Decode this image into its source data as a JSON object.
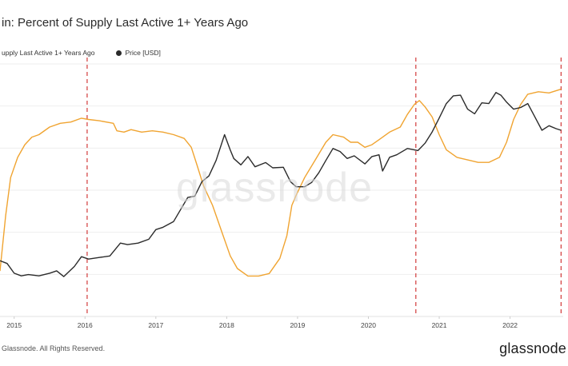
{
  "header": {
    "title": "in: Percent of Supply Last Active 1+ Years Ago"
  },
  "legend": {
    "items": [
      {
        "label": "upply Last Active 1+ Years Ago",
        "color": "#f0a431"
      },
      {
        "label": "Price [USD]",
        "color": "#2b2b2b"
      }
    ]
  },
  "watermark": "glassnode",
  "footer": {
    "copyright": "Glassnode. All Rights Reserved.",
    "logo": "glassnode"
  },
  "chart_data": {
    "type": "line",
    "xlim": [
      2014.8,
      2022.75
    ],
    "x_ticks": [
      {
        "x": 2015,
        "label": "2015"
      },
      {
        "x": 2016,
        "label": "2016"
      },
      {
        "x": 2017,
        "label": "2017"
      },
      {
        "x": 2018,
        "label": "2018"
      },
      {
        "x": 2019,
        "label": "2019"
      },
      {
        "x": 2020,
        "label": "2020"
      },
      {
        "x": 2021,
        "label": "2021"
      },
      {
        "x": 2022,
        "label": "2022"
      }
    ],
    "halvings": [
      2016.03,
      2020.67,
      2022.72
    ],
    "grid": "horizontal",
    "series": [
      {
        "key": "supply",
        "color": "#f0a431",
        "scale": "linear",
        "ylim": [
          0,
          100
        ],
        "points": [
          [
            2014.8,
            18
          ],
          [
            2014.88,
            40
          ],
          [
            2014.95,
            55
          ],
          [
            2015.05,
            63
          ],
          [
            2015.15,
            68
          ],
          [
            2015.25,
            71
          ],
          [
            2015.35,
            72
          ],
          [
            2015.5,
            75
          ],
          [
            2015.65,
            76.5
          ],
          [
            2015.8,
            77
          ],
          [
            2015.95,
            78.5
          ],
          [
            2016.05,
            78
          ],
          [
            2016.2,
            77.5
          ],
          [
            2016.4,
            76.5
          ],
          [
            2016.45,
            73.5
          ],
          [
            2016.55,
            73
          ],
          [
            2016.65,
            74
          ],
          [
            2016.8,
            73
          ],
          [
            2016.95,
            73.5
          ],
          [
            2017.1,
            73
          ],
          [
            2017.25,
            72
          ],
          [
            2017.4,
            70.5
          ],
          [
            2017.5,
            67
          ],
          [
            2017.58,
            60
          ],
          [
            2017.67,
            52
          ],
          [
            2017.8,
            44
          ],
          [
            2017.95,
            32
          ],
          [
            2018.05,
            24
          ],
          [
            2018.15,
            19
          ],
          [
            2018.3,
            16
          ],
          [
            2018.45,
            16
          ],
          [
            2018.6,
            17
          ],
          [
            2018.75,
            23
          ],
          [
            2018.85,
            32
          ],
          [
            2018.92,
            44
          ],
          [
            2018.98,
            48
          ],
          [
            2019.1,
            55
          ],
          [
            2019.25,
            62
          ],
          [
            2019.4,
            69
          ],
          [
            2019.5,
            72
          ],
          [
            2019.65,
            71
          ],
          [
            2019.75,
            69
          ],
          [
            2019.85,
            69
          ],
          [
            2019.95,
            67
          ],
          [
            2020.05,
            68
          ],
          [
            2020.15,
            70
          ],
          [
            2020.3,
            73
          ],
          [
            2020.45,
            75
          ],
          [
            2020.55,
            80
          ],
          [
            2020.65,
            84
          ],
          [
            2020.72,
            85.5
          ],
          [
            2020.8,
            83
          ],
          [
            2020.9,
            79
          ],
          [
            2021.0,
            72
          ],
          [
            2021.1,
            66
          ],
          [
            2021.25,
            63
          ],
          [
            2021.4,
            62
          ],
          [
            2021.55,
            61
          ],
          [
            2021.7,
            61
          ],
          [
            2021.85,
            63
          ],
          [
            2021.95,
            69
          ],
          [
            2022.05,
            78
          ],
          [
            2022.15,
            84
          ],
          [
            2022.25,
            88
          ],
          [
            2022.4,
            89
          ],
          [
            2022.55,
            88.5
          ],
          [
            2022.72,
            90
          ]
        ]
      },
      {
        "key": "price",
        "color": "#2b2b2b",
        "scale": "log",
        "ylim": [
          70,
          150000
        ],
        "points": [
          [
            2014.8,
            380
          ],
          [
            2014.9,
            350
          ],
          [
            2015.0,
            260
          ],
          [
            2015.1,
            240
          ],
          [
            2015.2,
            250
          ],
          [
            2015.35,
            240
          ],
          [
            2015.5,
            260
          ],
          [
            2015.6,
            280
          ],
          [
            2015.7,
            235
          ],
          [
            2015.85,
            320
          ],
          [
            2015.95,
            430
          ],
          [
            2016.05,
            400
          ],
          [
            2016.2,
            420
          ],
          [
            2016.35,
            440
          ],
          [
            2016.5,
            650
          ],
          [
            2016.6,
            620
          ],
          [
            2016.75,
            650
          ],
          [
            2016.9,
            730
          ],
          [
            2017.0,
            980
          ],
          [
            2017.1,
            1050
          ],
          [
            2017.25,
            1250
          ],
          [
            2017.35,
            1800
          ],
          [
            2017.45,
            2600
          ],
          [
            2017.55,
            2700
          ],
          [
            2017.65,
            4200
          ],
          [
            2017.75,
            5000
          ],
          [
            2017.85,
            8000
          ],
          [
            2017.97,
            17500
          ],
          [
            2018.05,
            11000
          ],
          [
            2018.1,
            8500
          ],
          [
            2018.2,
            7000
          ],
          [
            2018.3,
            9000
          ],
          [
            2018.4,
            6600
          ],
          [
            2018.55,
            7500
          ],
          [
            2018.65,
            6400
          ],
          [
            2018.8,
            6500
          ],
          [
            2018.9,
            4200
          ],
          [
            2018.98,
            3600
          ],
          [
            2019.1,
            3600
          ],
          [
            2019.2,
            4100
          ],
          [
            2019.3,
            5500
          ],
          [
            2019.4,
            8000
          ],
          [
            2019.5,
            11500
          ],
          [
            2019.6,
            10500
          ],
          [
            2019.7,
            8500
          ],
          [
            2019.8,
            9200
          ],
          [
            2019.95,
            7200
          ],
          [
            2020.05,
            9000
          ],
          [
            2020.15,
            9500
          ],
          [
            2020.2,
            5800
          ],
          [
            2020.3,
            8800
          ],
          [
            2020.4,
            9500
          ],
          [
            2020.55,
            11500
          ],
          [
            2020.7,
            10800
          ],
          [
            2020.8,
            13500
          ],
          [
            2020.9,
            19000
          ],
          [
            2021.0,
            29000
          ],
          [
            2021.1,
            45000
          ],
          [
            2021.2,
            57000
          ],
          [
            2021.3,
            58000
          ],
          [
            2021.4,
            38000
          ],
          [
            2021.5,
            33000
          ],
          [
            2021.6,
            46000
          ],
          [
            2021.7,
            45000
          ],
          [
            2021.8,
            63000
          ],
          [
            2021.87,
            58000
          ],
          [
            2021.95,
            47000
          ],
          [
            2022.05,
            38000
          ],
          [
            2022.15,
            40000
          ],
          [
            2022.25,
            45000
          ],
          [
            2022.35,
            30000
          ],
          [
            2022.45,
            20000
          ],
          [
            2022.55,
            23000
          ],
          [
            2022.65,
            21000
          ],
          [
            2022.72,
            20000
          ]
        ]
      }
    ]
  }
}
